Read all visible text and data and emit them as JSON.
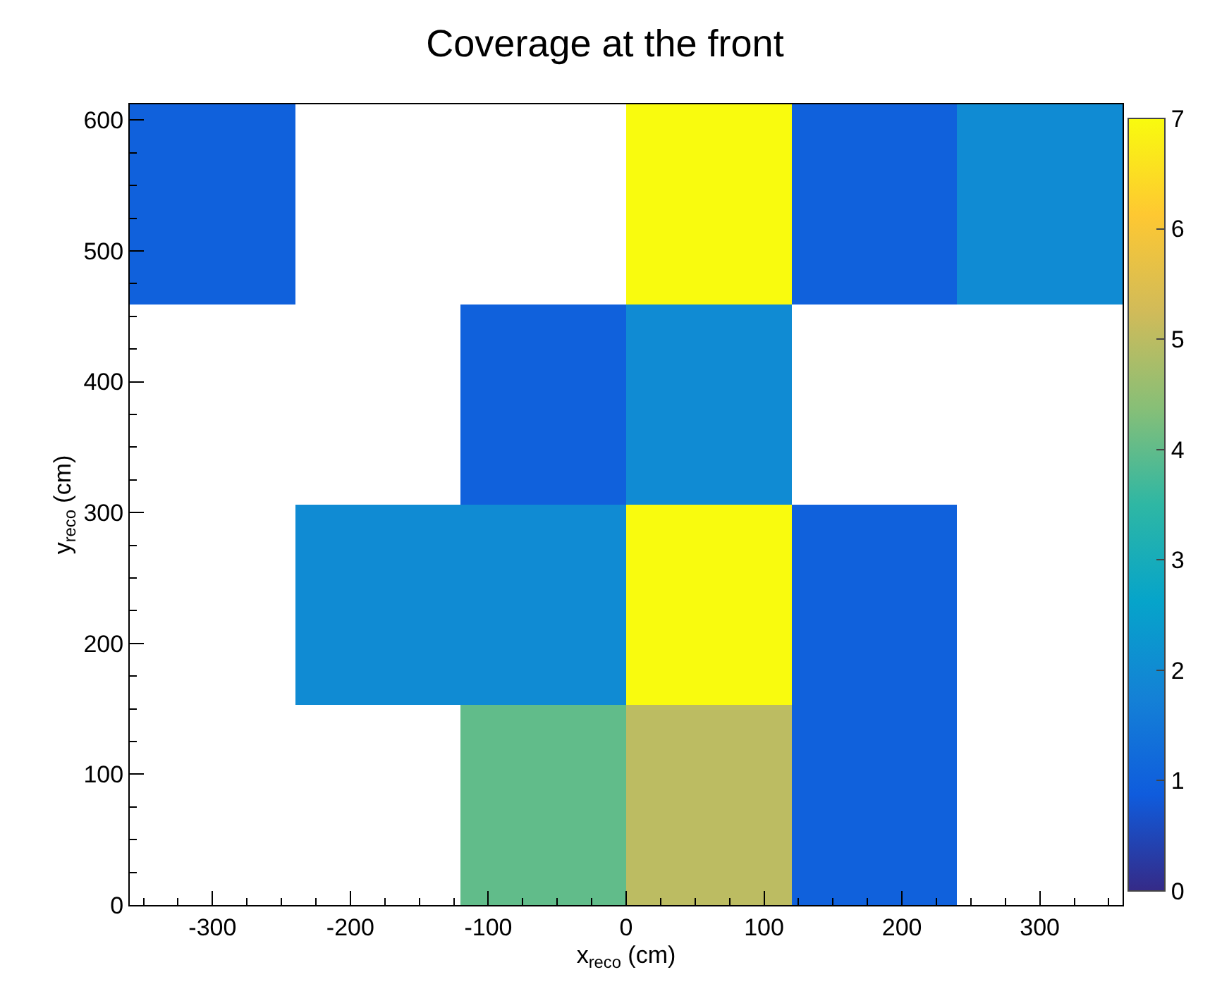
{
  "chart_data": {
    "type": "heatmap",
    "title": "Coverage at the front",
    "xlabel": "x$_{reco}$ (cm)",
    "ylabel": "y$_{reco}$ (cm)",
    "x": [
      -300,
      -180,
      -60,
      60,
      180,
      300
    ],
    "y": [
      535.5,
      382.5,
      229.5,
      76.5
    ],
    "cells": [
      [
        1,
        null,
        null,
        7,
        1,
        2
      ],
      [
        null,
        null,
        1,
        2,
        null,
        null
      ],
      [
        null,
        2,
        2,
        7,
        1,
        null
      ],
      [
        null,
        null,
        4,
        5,
        1,
        null
      ]
    ],
    "xlim": [
      -360,
      360
    ],
    "xticks": [
      -300,
      -200,
      -100,
      0,
      100,
      200,
      300
    ],
    "ylim": [
      0,
      612
    ],
    "yticks": [
      0,
      100,
      200,
      300,
      400,
      500,
      600
    ],
    "clim": [
      0,
      7
    ],
    "cticks": [
      0,
      1,
      2,
      3,
      4,
      5,
      6,
      7
    ],
    "grid": false
  }
}
